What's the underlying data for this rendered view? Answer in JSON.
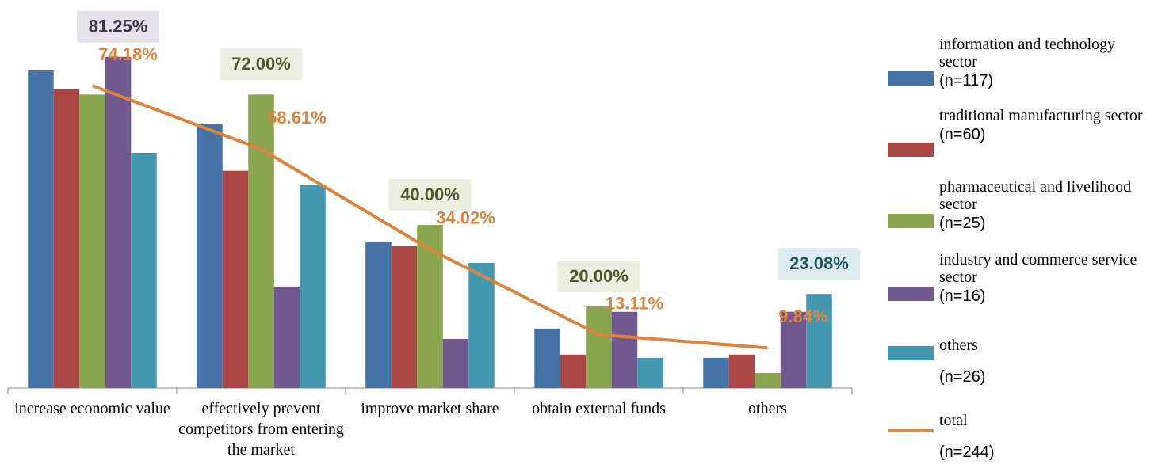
{
  "chart_data": {
    "type": "bar",
    "categories": [
      "increase economic value",
      "effectively prevent competitors from entering the market",
      "improve market share",
      "obtain external funds",
      "others"
    ],
    "ylim": [
      0,
      95
    ],
    "series": [
      {
        "name": "information and technology sector",
        "n_label": "(n=117)",
        "color": "#4572a7",
        "values": [
          77.9,
          64.7,
          35.8,
          14.6,
          7.4
        ],
        "value_labels": [
          null,
          null,
          null,
          null,
          null
        ]
      },
      {
        "name": "traditional manufacturing sector",
        "n_label": "(n=60)",
        "color": "#aa4643",
        "values": [
          73.3,
          53.3,
          34.8,
          8.2,
          8.2
        ],
        "value_labels": [
          null,
          null,
          null,
          null,
          null
        ]
      },
      {
        "name": "pharmaceutical and livelihood sector",
        "n_label": "(n=25)",
        "color": "#89a54e",
        "values": [
          72.0,
          72.0,
          40.0,
          20.0,
          3.7
        ],
        "value_labels": [
          null,
          "72.00%",
          "40.00%",
          "20.00%",
          null
        ]
      },
      {
        "name": "industry and commerce service sector",
        "n_label": "(n=16)",
        "color": "#71588f",
        "values": [
          81.25,
          24.9,
          12.05,
          18.7,
          18.7
        ],
        "value_labels": [
          "81.25%",
          null,
          null,
          null,
          null
        ]
      },
      {
        "name": "others",
        "n_label": "(n=26)",
        "color": "#4198af",
        "values": [
          57.7,
          49.8,
          30.7,
          7.4,
          23.08
        ],
        "value_labels": [
          null,
          null,
          null,
          null,
          "23.08%"
        ]
      },
      {
        "name": "total",
        "n_label": "(n=244)",
        "color": "#db843d",
        "type": "line",
        "values": [
          74.18,
          58.61,
          34.02,
          13.11,
          9.84
        ],
        "value_labels": [
          "74.18%",
          "58.61%",
          "34.02%",
          "13.11%",
          "9.84%"
        ]
      }
    ]
  }
}
